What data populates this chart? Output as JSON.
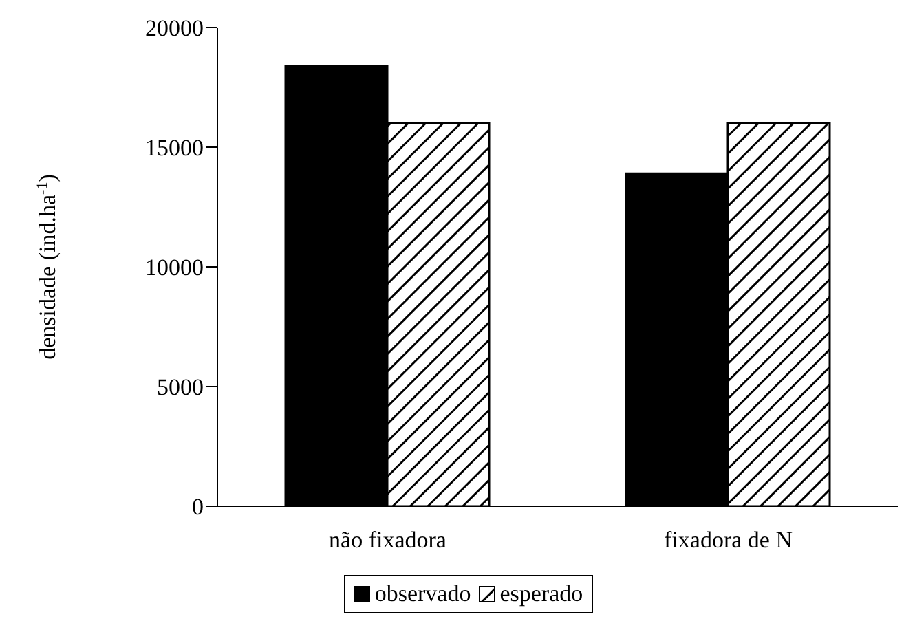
{
  "chart_data": {
    "type": "bar",
    "ylabel": "densidade (ind.ha$^{-1}$)",
    "categories": [
      "não fixadora",
      "fixadora de N"
    ],
    "series": [
      {
        "name": "observado",
        "color": "#000000",
        "values": [
          18400,
          13900
        ]
      },
      {
        "name": "esperado",
        "color": "#000000",
        "values": [
          16000,
          16000
        ]
      }
    ],
    "ylim": [
      0,
      20000
    ],
    "yticks": [
      0,
      5000,
      10000,
      15000,
      20000
    ],
    "grid": false,
    "legend": "bottom"
  }
}
